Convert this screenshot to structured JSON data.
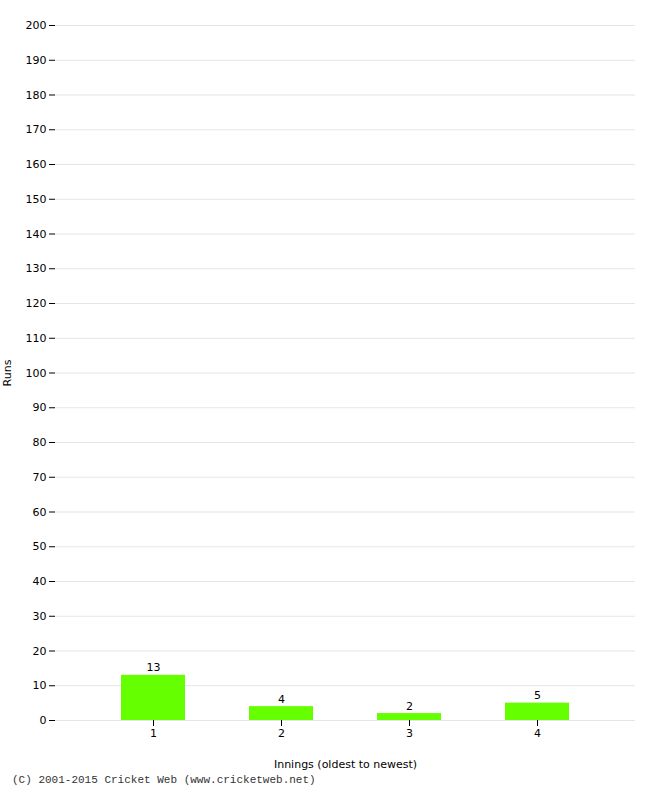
{
  "chart_data": {
    "type": "bar",
    "xlabel": "Innings (oldest to newest)",
    "ylabel": "Runs",
    "categories": [
      "1",
      "2",
      "3",
      "4"
    ],
    "values": [
      13,
      4,
      2,
      5
    ],
    "color": "#66ff00",
    "ylim": [
      0,
      200
    ],
    "yticks": [
      0,
      10,
      20,
      30,
      40,
      50,
      60,
      70,
      80,
      90,
      100,
      110,
      120,
      130,
      140,
      150,
      160,
      170,
      180,
      190,
      200
    ],
    "grid": true,
    "data_labels": true,
    "annotations": [
      "(C) 2001-2015 Cricket Web (www.cricketweb.net)"
    ]
  }
}
